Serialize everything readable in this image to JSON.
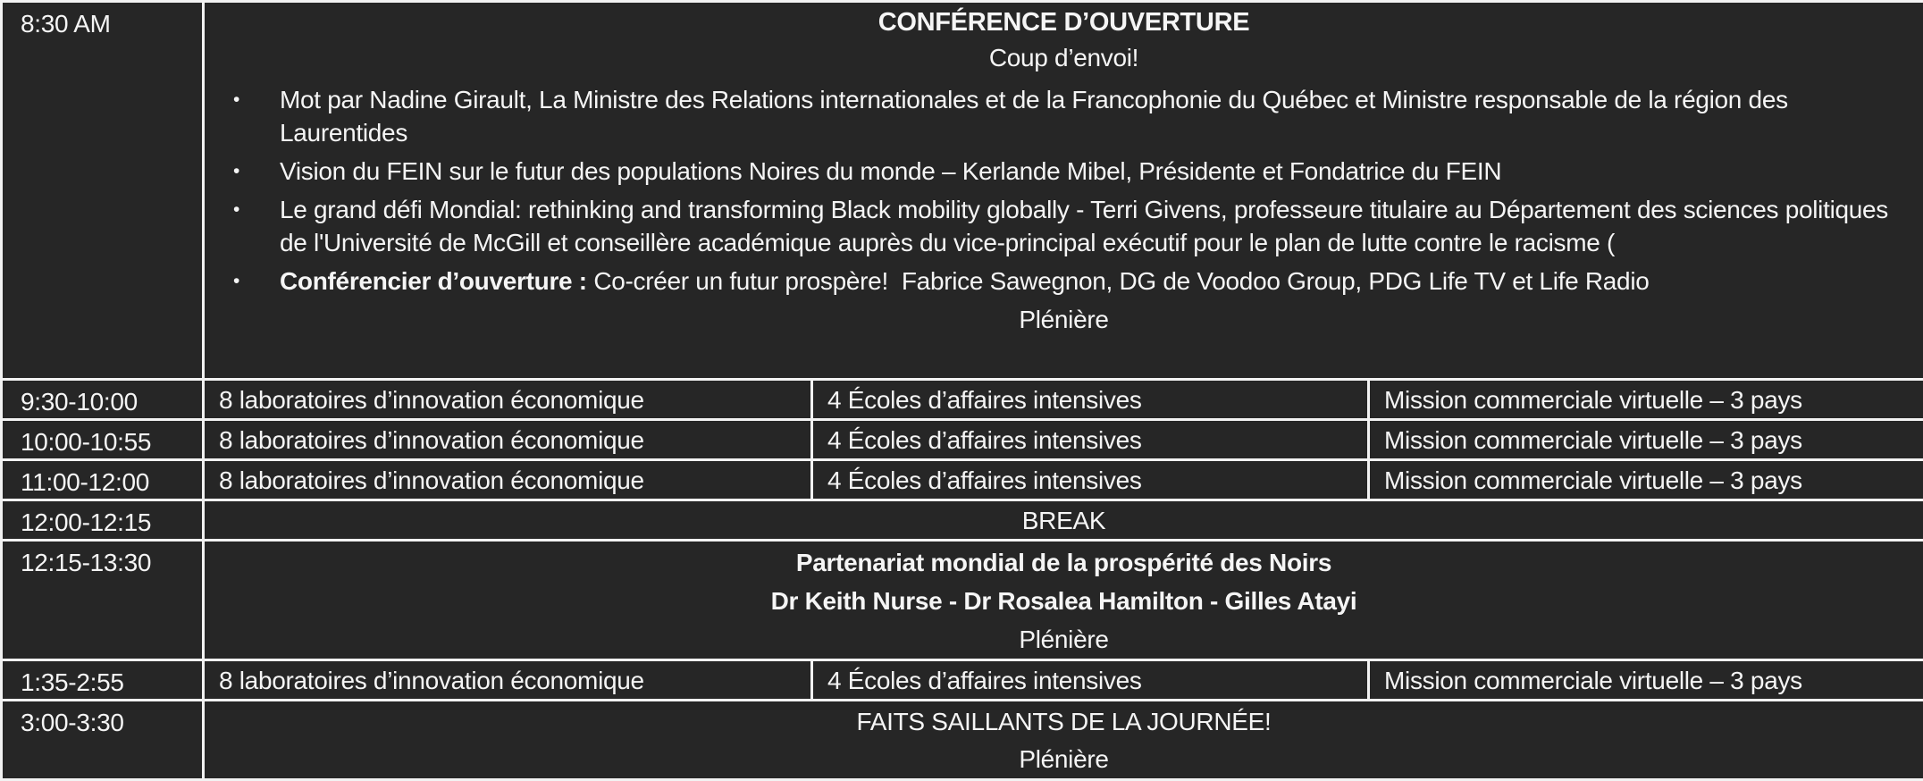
{
  "colors": {
    "background": "#262626",
    "border": "#f2f2f2",
    "text": "#f5f5f5"
  },
  "schedule": {
    "bullet_glyph": "•",
    "opening": {
      "time": "8:30 AM",
      "title": "CONFÉRENCE D’OUVERTURE",
      "subtitle": "Coup d’envoi!",
      "bullets": [
        {
          "lead": "",
          "text": "Mot par Nadine Girault, La Ministre des Relations internationales et de la Francophonie du Québec et Ministre responsable de la région des Laurentides"
        },
        {
          "lead": "",
          "text": "Vision du FEIN sur le futur des populations Noires du monde – Kerlande Mibel, Présidente et Fondatrice du FEIN"
        },
        {
          "lead": "",
          "text": "Le grand défi Mondial: rethinking and transforming Black mobility globally - Terri Givens, professeure titulaire au Département des sciences politiques de l'Université de McGill et conseillère académique auprès du vice-principal exécutif pour le plan de lutte contre le racisme ("
        },
        {
          "lead": "Conférencier d’ouverture : ",
          "text": "Co-créer un futur prospère!  Fabrice Sawegnon, DG de Voodoo Group, PDG Life TV et Life Radio"
        }
      ],
      "footer": "Plénière"
    },
    "sessions": [
      {
        "time": "9:30-10:00",
        "labs": "8 laboratoires d’innovation économique",
        "schools": "4 Écoles d’affaires intensives",
        "mission": "Mission commerciale virtuelle – 3 pays"
      },
      {
        "time": "10:00-10:55",
        "labs": "8 laboratoires d’innovation économique",
        "schools": "4 Écoles d’affaires intensives",
        "mission": "Mission commerciale virtuelle – 3 pays"
      },
      {
        "time": "11:00-12:00",
        "labs": "8 laboratoires d’innovation économique",
        "schools": "4 Écoles d’affaires intensives",
        "mission": "Mission commerciale virtuelle – 3 pays"
      },
      {
        "time": "1:35-2:55",
        "labs": "8 laboratoires d’innovation économique",
        "schools": "4 Écoles d’affaires intensives",
        "mission": "Mission commerciale virtuelle – 3 pays"
      }
    ],
    "break": {
      "time": "12:00-12:15",
      "label": "BREAK"
    },
    "plenary": {
      "time": "12:15-13:30",
      "title": "Partenariat mondial de la prospérité des Noirs",
      "speakers": "Dr Keith Nurse - Dr Rosalea Hamilton - Gilles Atayi",
      "footer": "Plénière"
    },
    "highlights": {
      "time": "3:00-3:30",
      "title": "FAITS SAILLANTS DE LA JOURNÉE!",
      "footer": "Plénière"
    }
  }
}
